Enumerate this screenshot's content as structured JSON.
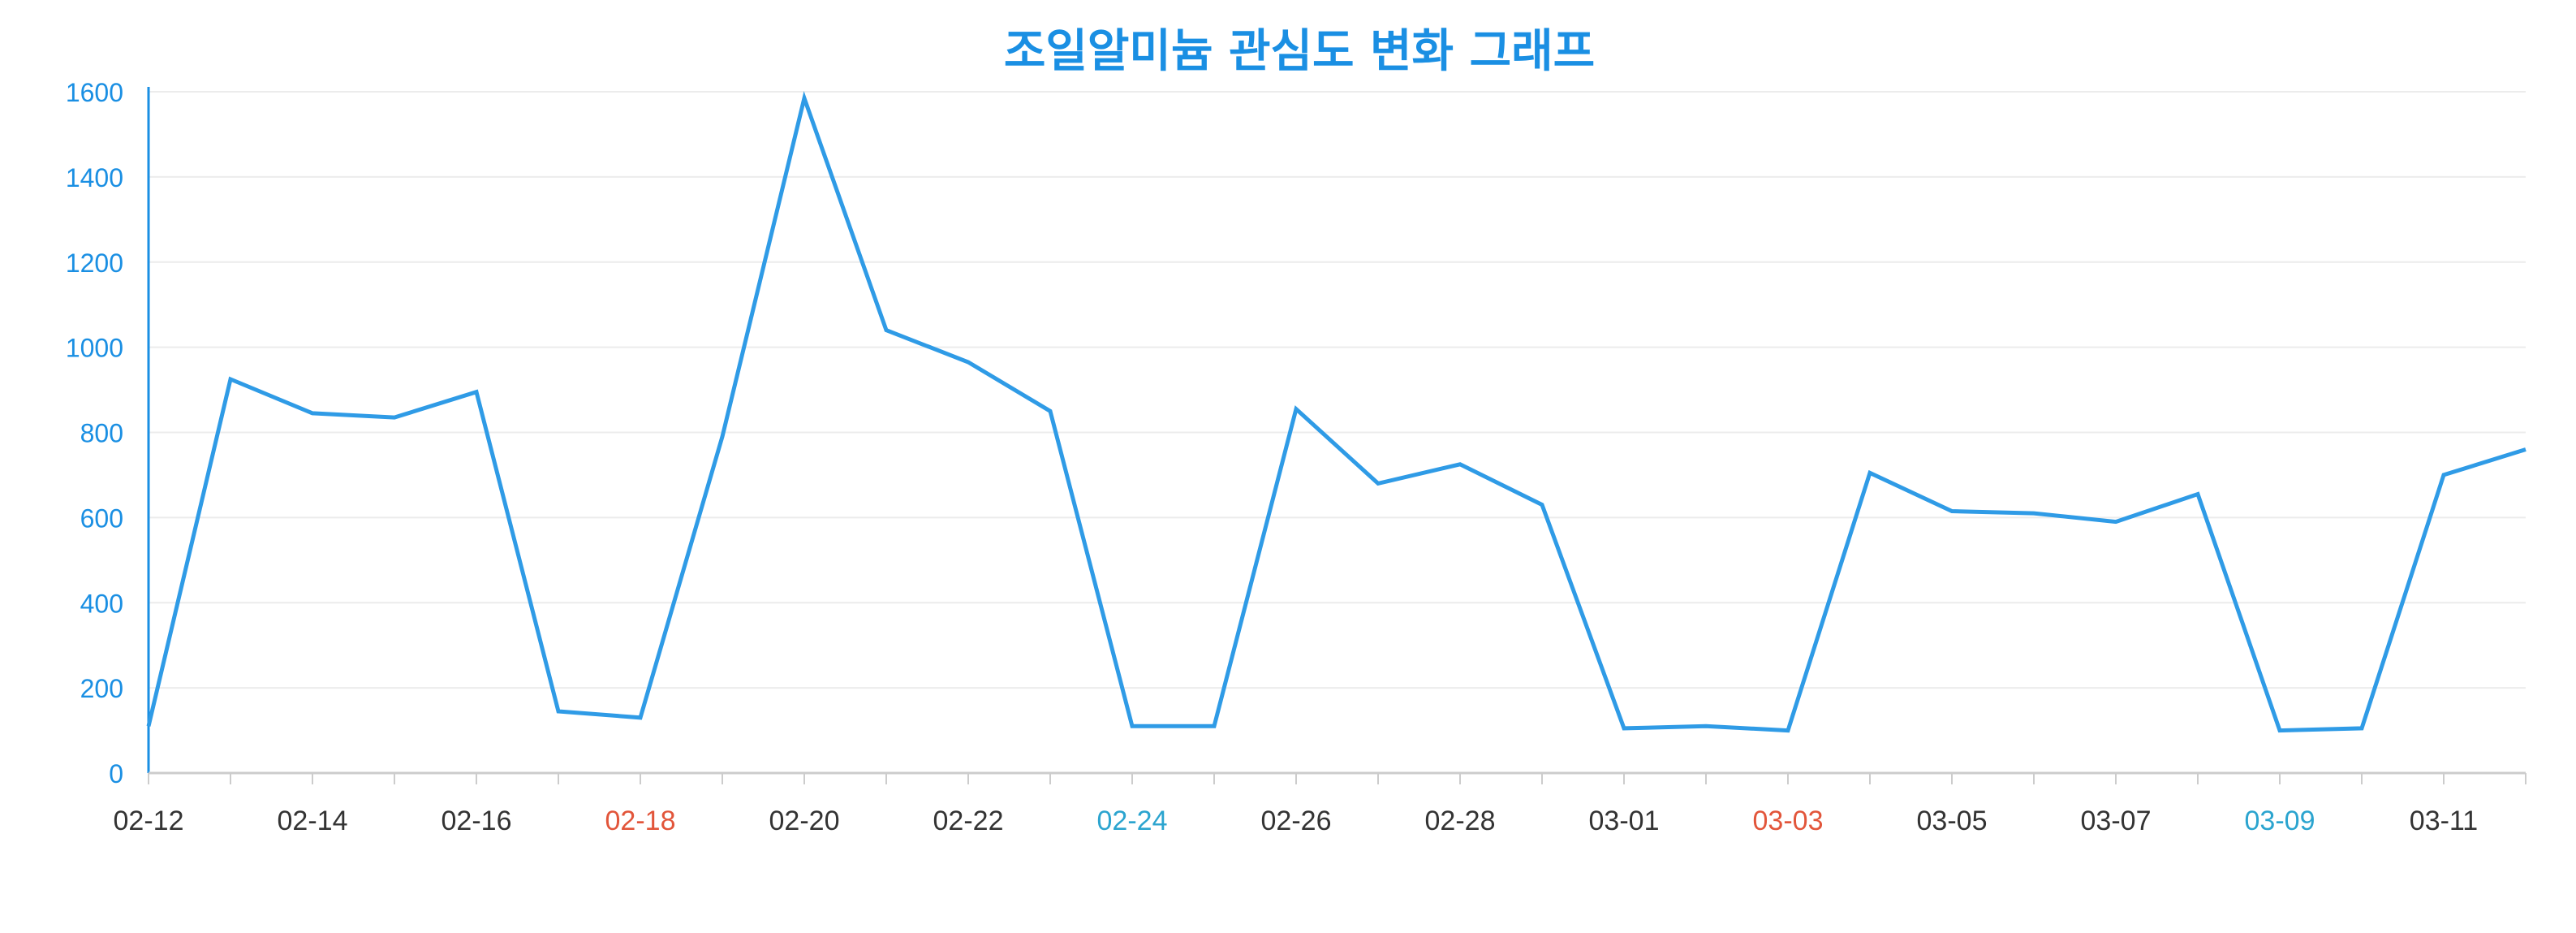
{
  "chart_data": {
    "type": "line",
    "title": "조일알미늄 관심도 변화 그래프",
    "xlabel": "",
    "ylabel": "",
    "ylim": [
      0,
      1600
    ],
    "y_ticks": [
      "0",
      "200",
      "400",
      "600",
      "800",
      "1000",
      "1200",
      "1400",
      "1600"
    ],
    "grid": true,
    "colors": {
      "line": "#2f9be6",
      "axis": "#1a8fe3",
      "grid": "#ececec",
      "title": "#1a8fe3",
      "tick_default": "#333333",
      "tick_saturday": "#2ba4cf",
      "tick_holiday": "#e2553a"
    },
    "x_tick_labels": [
      {
        "label": "02-12",
        "index": 0,
        "kind": "default"
      },
      {
        "label": "02-14",
        "index": 2,
        "kind": "default"
      },
      {
        "label": "02-16",
        "index": 4,
        "kind": "default"
      },
      {
        "label": "02-18",
        "index": 6,
        "kind": "holiday"
      },
      {
        "label": "02-20",
        "index": 8,
        "kind": "default"
      },
      {
        "label": "02-22",
        "index": 10,
        "kind": "default"
      },
      {
        "label": "02-24",
        "index": 12,
        "kind": "saturday"
      },
      {
        "label": "02-26",
        "index": 14,
        "kind": "default"
      },
      {
        "label": "02-28",
        "index": 16,
        "kind": "default"
      },
      {
        "label": "03-01",
        "index": 18,
        "kind": "default"
      },
      {
        "label": "03-03",
        "index": 20,
        "kind": "holiday"
      },
      {
        "label": "03-05",
        "index": 22,
        "kind": "default"
      },
      {
        "label": "03-07",
        "index": 24,
        "kind": "default"
      },
      {
        "label": "03-09",
        "index": 26,
        "kind": "saturday"
      },
      {
        "label": "03-11",
        "index": 28,
        "kind": "default"
      }
    ],
    "series": [
      {
        "values": [
          110,
          925,
          845,
          835,
          895,
          145,
          130,
          790,
          1585,
          1040,
          965,
          850,
          110,
          110,
          855,
          680,
          725,
          630,
          105,
          110,
          100,
          705,
          615,
          610,
          590,
          655,
          100,
          105,
          700,
          760
        ]
      }
    ]
  }
}
